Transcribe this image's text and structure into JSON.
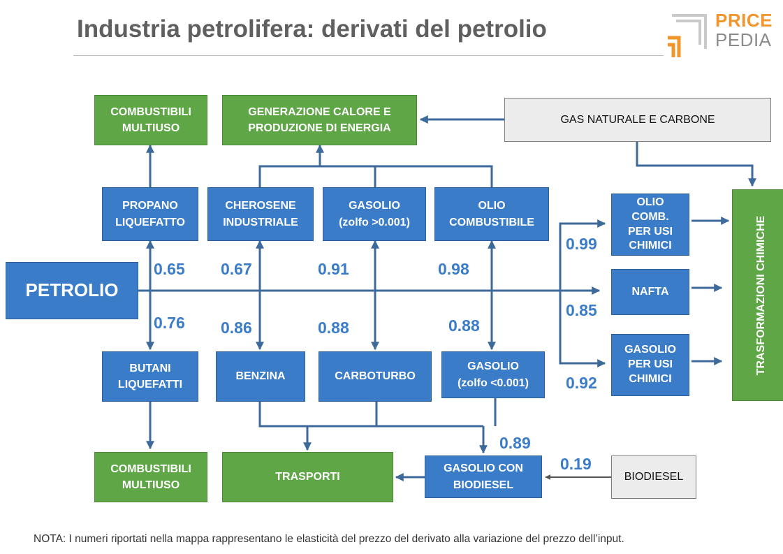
{
  "title": "Industria petrolifera: derivati del petrolio",
  "logo": {
    "line1": "PRICE",
    "line2": "PEDIA"
  },
  "boxes": {
    "combustibili_top": "COMBUSTIBILI\nMULTIUSO",
    "generazione": "GENERAZIONE CALORE E\nPRODUZIONE DI ENERGIA",
    "gas_naturale": "GAS NATURALE E CARBONE",
    "propano": "PROPANO\nLIQUEFATTO",
    "cherosene": "CHEROSENE\nINDUSTRIALE",
    "gasolio_alto": "GASOLIO\n(zolfo >0.001)",
    "olio_combustibile": "OLIO\nCOMBUSTIBILE",
    "olio_comb_chimici": "OLIO\nCOMB.\nPER USI\nCHIMICI",
    "petrolio": "PETROLIO",
    "nafta": "NAFTA",
    "gasolio_chimici": "GASOLIO\nPER USI\nCHIMICI",
    "trasformazioni": "TRASFORMAZIONI CHIMICHE",
    "butani": "BUTANI\nLIQUEFATTI",
    "benzina": "BENZINA",
    "carboturbo": "CARBOTURBO",
    "gasolio_basso": "GASOLIO\n(zolfo <0.001)",
    "combustibili_bottom": "COMBUSTIBILI\nMULTIUSO",
    "trasporti": "TRASPORTI",
    "gasolio_biodiesel": "GASOLIO CON\nBIODIESEL",
    "biodiesel": "BIODIESEL"
  },
  "elasticities": {
    "propano": "0.65",
    "cherosene": "0.67",
    "gasolio_alto": "0.91",
    "olio_combustibile": "0.98",
    "olio_comb_chimici": "0.99",
    "nafta": "0.85",
    "gasolio_chimici": "0.92",
    "butani": "0.76",
    "benzina": "0.86",
    "carboturbo": "0.88",
    "gasolio_basso": "0.88",
    "gasolio_biodiesel": "0.89",
    "biodiesel": "0.19"
  },
  "colors": {
    "blue": "#3a7cc8",
    "green": "#5fa746",
    "gray": "#ececec",
    "line": "#3d6a9a"
  },
  "note": "NOTA: I numeri riportati nella mappa rappresentano le elasticità del prezzo del derivato alla variazione del prezzo dell’input."
}
